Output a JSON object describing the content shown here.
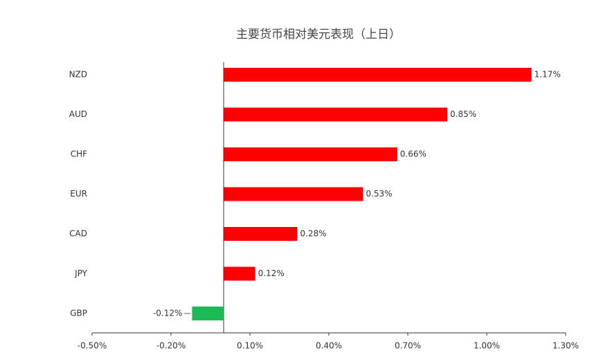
{
  "chart_data": {
    "type": "hbar",
    "title": "主要货币相对美元表现（上日）",
    "categories": [
      "NZD",
      "AUD",
      "CHF",
      "EUR",
      "CAD",
      "JPY",
      "GBP"
    ],
    "values": [
      1.17,
      0.85,
      0.66,
      0.53,
      0.28,
      0.12,
      -0.12
    ],
    "value_labels": [
      "1.17%",
      "0.85%",
      "0.66%",
      "0.53%",
      "0.28%",
      "0.12%",
      "-0.12%"
    ],
    "colors": [
      "#ff0000",
      "#ff0000",
      "#ff0000",
      "#ff0000",
      "#ff0000",
      "#ff0000",
      "#1db954"
    ],
    "xlim": [
      -0.5,
      1.3
    ],
    "xticks": [
      {
        "value": -0.5,
        "label": "-0.50%"
      },
      {
        "value": -0.2,
        "label": "-0.20%"
      },
      {
        "value": 0.1,
        "label": "0.10%"
      },
      {
        "value": 0.4,
        "label": "0.40%"
      },
      {
        "value": 0.7,
        "label": "0.70%"
      },
      {
        "value": 1.0,
        "label": "1.00%"
      },
      {
        "value": 1.3,
        "label": "1.30%"
      }
    ],
    "grid": false
  }
}
